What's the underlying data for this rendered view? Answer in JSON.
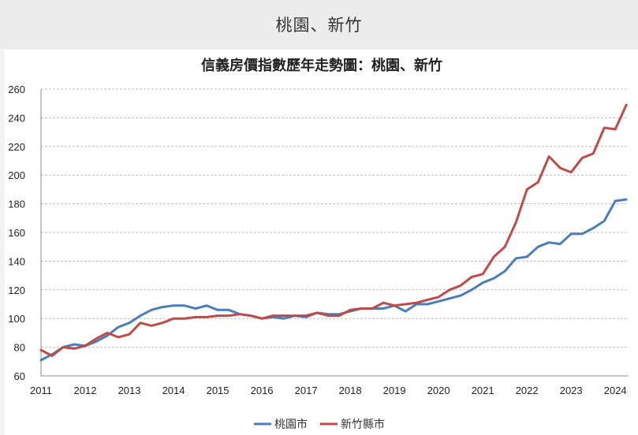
{
  "header": {
    "title": "桃園、新竹"
  },
  "chart_data": {
    "type": "line",
    "title": "信義房價指數歷年走勢圖：桃園、新竹",
    "xlabel": "",
    "ylabel": "",
    "xlim": [
      2011,
      2024.3
    ],
    "ylim": [
      60,
      260
    ],
    "y_ticks": [
      "60",
      "80",
      "100",
      "120",
      "140",
      "160",
      "180",
      "200",
      "220",
      "240",
      "260"
    ],
    "x_ticks": [
      "2011",
      "2012",
      "2013",
      "2014",
      "2015",
      "2016",
      "2017",
      "2018",
      "2019",
      "2020",
      "2021",
      "2022",
      "2023",
      "2024"
    ],
    "grid": true,
    "legend_position": "bottom",
    "series": [
      {
        "name": "桃園市",
        "color": "#4a7ebb",
        "points": [
          [
            2011.0,
            71
          ],
          [
            2011.25,
            75
          ],
          [
            2011.5,
            80
          ],
          [
            2011.75,
            82
          ],
          [
            2012.0,
            81
          ],
          [
            2012.25,
            84
          ],
          [
            2012.5,
            88
          ],
          [
            2012.75,
            94
          ],
          [
            2013.0,
            97
          ],
          [
            2013.25,
            102
          ],
          [
            2013.5,
            106
          ],
          [
            2013.75,
            108
          ],
          [
            2014.0,
            109
          ],
          [
            2014.25,
            109
          ],
          [
            2014.5,
            107
          ],
          [
            2014.75,
            109
          ],
          [
            2015.0,
            106
          ],
          [
            2015.25,
            106
          ],
          [
            2015.5,
            103
          ],
          [
            2015.75,
            102
          ],
          [
            2016.0,
            100
          ],
          [
            2016.25,
            101
          ],
          [
            2016.5,
            100
          ],
          [
            2016.75,
            102
          ],
          [
            2017.0,
            101
          ],
          [
            2017.25,
            104
          ],
          [
            2017.5,
            103
          ],
          [
            2017.75,
            103
          ],
          [
            2018.0,
            105
          ],
          [
            2018.25,
            107
          ],
          [
            2018.5,
            107
          ],
          [
            2018.75,
            107
          ],
          [
            2019.0,
            109
          ],
          [
            2019.25,
            105
          ],
          [
            2019.5,
            110
          ],
          [
            2019.75,
            110
          ],
          [
            2020.0,
            112
          ],
          [
            2020.25,
            114
          ],
          [
            2020.5,
            116
          ],
          [
            2020.75,
            120
          ],
          [
            2021.0,
            125
          ],
          [
            2021.25,
            128
          ],
          [
            2021.5,
            133
          ],
          [
            2021.75,
            142
          ],
          [
            2022.0,
            143
          ],
          [
            2022.25,
            150
          ],
          [
            2022.5,
            153
          ],
          [
            2022.75,
            152
          ],
          [
            2023.0,
            159
          ],
          [
            2023.25,
            159
          ],
          [
            2023.5,
            163
          ],
          [
            2023.75,
            168
          ],
          [
            2024.0,
            182
          ],
          [
            2024.25,
            183
          ]
        ]
      },
      {
        "name": "新竹縣市",
        "color": "#be4b48",
        "points": [
          [
            2011.0,
            78
          ],
          [
            2011.25,
            74
          ],
          [
            2011.5,
            80
          ],
          [
            2011.75,
            79
          ],
          [
            2012.0,
            81
          ],
          [
            2012.25,
            86
          ],
          [
            2012.5,
            90
          ],
          [
            2012.75,
            87
          ],
          [
            2013.0,
            89
          ],
          [
            2013.25,
            97
          ],
          [
            2013.5,
            95
          ],
          [
            2013.75,
            97
          ],
          [
            2014.0,
            100
          ],
          [
            2014.25,
            100
          ],
          [
            2014.5,
            101
          ],
          [
            2014.75,
            101
          ],
          [
            2015.0,
            102
          ],
          [
            2015.25,
            102
          ],
          [
            2015.5,
            103
          ],
          [
            2015.75,
            102
          ],
          [
            2016.0,
            100
          ],
          [
            2016.25,
            102
          ],
          [
            2016.5,
            102
          ],
          [
            2016.75,
            102
          ],
          [
            2017.0,
            102
          ],
          [
            2017.25,
            104
          ],
          [
            2017.5,
            102
          ],
          [
            2017.75,
            102
          ],
          [
            2018.0,
            106
          ],
          [
            2018.25,
            107
          ],
          [
            2018.5,
            107
          ],
          [
            2018.75,
            111
          ],
          [
            2019.0,
            109
          ],
          [
            2019.25,
            110
          ],
          [
            2019.5,
            111
          ],
          [
            2019.75,
            113
          ],
          [
            2020.0,
            115
          ],
          [
            2020.25,
            120
          ],
          [
            2020.5,
            123
          ],
          [
            2020.75,
            129
          ],
          [
            2021.0,
            131
          ],
          [
            2021.25,
            143
          ],
          [
            2021.5,
            150
          ],
          [
            2021.75,
            167
          ],
          [
            2022.0,
            190
          ],
          [
            2022.25,
            195
          ],
          [
            2022.5,
            213
          ],
          [
            2022.75,
            205
          ],
          [
            2023.0,
            202
          ],
          [
            2023.25,
            212
          ],
          [
            2023.5,
            215
          ],
          [
            2023.75,
            233
          ],
          [
            2024.0,
            232
          ],
          [
            2024.25,
            249
          ]
        ]
      }
    ]
  }
}
